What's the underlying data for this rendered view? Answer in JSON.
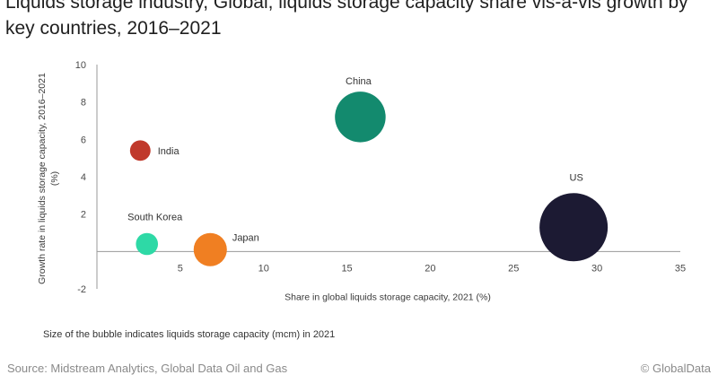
{
  "title_lines": [
    "Liquids storage industry, Global, liquids storage capacity share vis-à-vis growth by",
    "key countries, 2016–2021"
  ],
  "footnote": "Size of the bubble indicates liquids storage capacity (mcm) in 2021",
  "source": "Source: Midstream Analytics, Global Data Oil and Gas",
  "copyright": "© GlobalData",
  "chart_data": {
    "type": "scatter",
    "bubble": true,
    "xlabel": "Share in global liquids storage capacity, 2021 (%)",
    "ylabel_lines": [
      "Growth rate in liquids storage capacity, 2016–2021",
      "(%)"
    ],
    "xlim": [
      0,
      35
    ],
    "ylim": [
      -2,
      10
    ],
    "xticks": [
      5,
      10,
      15,
      20,
      25,
      30,
      35
    ],
    "yticks": [
      -2,
      2,
      4,
      6,
      8,
      10
    ],
    "grid": false,
    "legend": "none",
    "series": [
      {
        "name": "China",
        "x": 15.8,
        "y": 7.2,
        "size": 15.8,
        "color": "#138a6e"
      },
      {
        "name": "India",
        "x": 2.6,
        "y": 5.4,
        "size": 2.6,
        "color": "#c0392b"
      },
      {
        "name": "US",
        "x": 28.6,
        "y": 1.3,
        "size": 28.6,
        "color": "#1c1a33"
      },
      {
        "name": "South Korea",
        "x": 3.0,
        "y": 0.4,
        "size": 3.0,
        "color": "#2ed9a6"
      },
      {
        "name": "Japan",
        "x": 6.8,
        "y": 0.1,
        "size": 6.8,
        "color": "#f07f22"
      }
    ]
  }
}
